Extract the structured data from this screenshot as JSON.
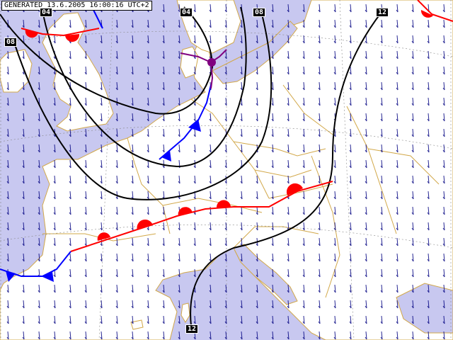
{
  "header": {
    "generated_label": "GENERATED 13.6.2005 16:00:16 UTC+2"
  },
  "isobar_labels": [
    "04",
    "04",
    "08",
    "12",
    "08",
    "12"
  ],
  "colors": {
    "sea": "#c8c8f0",
    "land": "#ffffff",
    "border": "#d2a84a",
    "isobar": "#000000",
    "warm_front": "#ff0000",
    "cold_front": "#0000ff",
    "occluded_front": "#800080",
    "wind_arrow": "#000080",
    "graticule": "#888888"
  },
  "fronts": {
    "warm": "warm-front",
    "cold": "cold-front",
    "occluded": "occluded-front",
    "low_center": "low-pressure-center"
  }
}
